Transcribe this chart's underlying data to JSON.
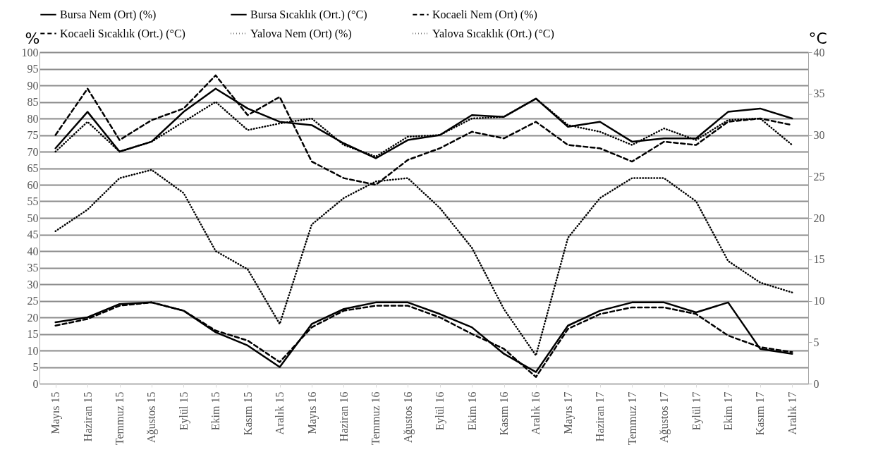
{
  "chart_data": {
    "type": "line",
    "categories": [
      "Mayıs 15",
      "Haziran 15",
      "Temmuz 15",
      "Ağustos 15",
      "Eylül 15",
      "Ekim 15",
      "Kasım 15",
      "Aralık 15",
      "Mayıs 16",
      "Haziran 16",
      "Temmuz 16",
      "Ağustos 16",
      "Eylül 16",
      "Ekim 16",
      "Kasım 16",
      "Aralık 16",
      "Mayıs 17",
      "Haziran 17",
      "Temmuz 17",
      "Ağustos 17",
      "Eylül 17",
      "Ekim 17",
      "Kasım 17",
      "Aralık 17"
    ],
    "ylabel": "%",
    "y2label": "°C",
    "ylim": [
      0,
      100
    ],
    "yticks": [
      0,
      5,
      10,
      15,
      20,
      25,
      30,
      35,
      40,
      45,
      50,
      55,
      60,
      65,
      70,
      75,
      80,
      85,
      90,
      95,
      100
    ],
    "y2lim": [
      0,
      40
    ],
    "y2ticks": [
      0,
      5,
      10,
      15,
      20,
      25,
      30,
      35,
      40
    ],
    "grid": "y",
    "legend": "top",
    "series": [
      {
        "name": "Bursa Nem (Ort) (%)",
        "color": "#000000",
        "line_style": "solid",
        "values": [
          71,
          82,
          70,
          73,
          82,
          89,
          83,
          79,
          78,
          72.5,
          68,
          73.5,
          75,
          81,
          80.5,
          86,
          77.5,
          79,
          73,
          74,
          74,
          82,
          83,
          80
        ]
      },
      {
        "name": "Bursa Sıcaklık (Ort.) (°C)",
        "color": "#000000",
        "line_style": "solid",
        "axis": "y2",
        "values": [
          7.4,
          8,
          9.6,
          9.8,
          8.8,
          6.2,
          4.6,
          2,
          7.2,
          9,
          9.8,
          9.8,
          8.4,
          6.8,
          3.6,
          1.4,
          7,
          8.8,
          9.8,
          9.8,
          8.6,
          9.8,
          4.2,
          3.6
        ]
      },
      {
        "name": "Kocaeli Nem (Ort) (%)",
        "color": "#000000",
        "line_style": "dashed",
        "values": [
          75,
          89,
          73.5,
          79.5,
          83,
          93,
          81,
          86.5,
          67,
          62,
          60,
          67.5,
          71,
          76,
          74,
          79,
          72,
          71,
          67,
          73,
          72,
          79,
          80,
          78
        ]
      },
      {
        "name": "Kocaeli Sıcaklık (Ort.) (°C)",
        "color": "#000000",
        "line_style": "dashed",
        "axis": "y2",
        "values": [
          7,
          7.8,
          9.4,
          9.8,
          8.8,
          6.4,
          5.2,
          2.6,
          6.8,
          8.8,
          9.4,
          9.4,
          8,
          6,
          4.2,
          0.8,
          6.6,
          8.4,
          9.2,
          9.2,
          8.4,
          5.8,
          4.4,
          3.8
        ]
      },
      {
        "name": "Yalova Nem (Ort) (%)",
        "color": "#000000",
        "line_style": "dotted",
        "values": [
          70,
          79,
          70,
          73,
          79,
          85,
          76.5,
          78.5,
          80,
          72,
          68.5,
          74.5,
          75,
          80,
          80.5,
          86,
          78,
          76,
          72,
          77,
          73.5,
          79.5,
          80,
          72
        ]
      },
      {
        "name": "Yalova Sıcaklık (Ort.) (°C)",
        "color": "#000000",
        "line_style": "dotted",
        "axis": "y2",
        "values": [
          18.4,
          21,
          24.8,
          25.8,
          23,
          16,
          13.8,
          7.2,
          19.2,
          22.4,
          24.4,
          24.8,
          21.2,
          16.4,
          9,
          3.4,
          17.6,
          22.4,
          24.8,
          24.8,
          22,
          14.8,
          12.2,
          11
        ]
      }
    ]
  }
}
